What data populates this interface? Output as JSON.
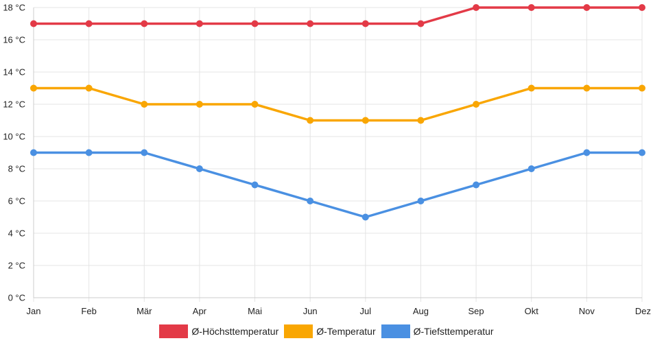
{
  "chart_data": {
    "type": "line",
    "title": "",
    "xlabel": "",
    "ylabel": "",
    "categories": [
      "Jan",
      "Feb",
      "Mär",
      "Apr",
      "Mai",
      "Jun",
      "Jul",
      "Aug",
      "Sep",
      "Okt",
      "Nov",
      "Dez"
    ],
    "ylim": [
      0,
      18
    ],
    "yticks": [
      0,
      2,
      4,
      6,
      8,
      10,
      12,
      14,
      16,
      18
    ],
    "ytick_labels": [
      "0 °C",
      "2 °C",
      "4 °C",
      "6 °C",
      "8 °C",
      "10 °C",
      "12 °C",
      "14 °C",
      "16 °C",
      "18 °C"
    ],
    "y_unit": "°C",
    "grid": true,
    "legend_position": "bottom",
    "series": [
      {
        "name": "Ø-Höchsttemperatur",
        "color": "#e33a47",
        "values": [
          17,
          17,
          17,
          17,
          17,
          17,
          17,
          17,
          18,
          18,
          18,
          18
        ]
      },
      {
        "name": "Ø-Temperatur",
        "color": "#f9a602",
        "values": [
          13,
          13,
          12,
          12,
          12,
          11,
          11,
          11,
          12,
          13,
          13,
          13
        ]
      },
      {
        "name": "Ø-Tiefsttemperatur",
        "color": "#4a90e2",
        "values": [
          9,
          9,
          9,
          8,
          7,
          6,
          5,
          6,
          7,
          8,
          9,
          9
        ]
      }
    ]
  }
}
